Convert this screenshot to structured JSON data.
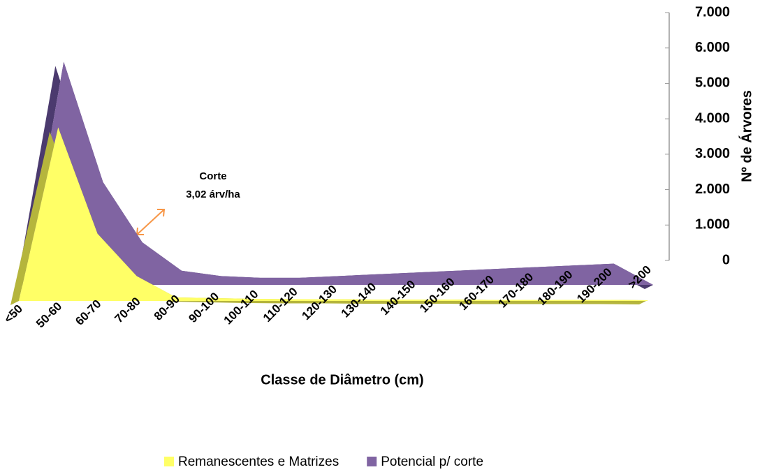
{
  "chart_data": {
    "type": "area",
    "x_label": "Classe de Diâmetro (cm)",
    "y_label": "Nº de Árvores",
    "categories": [
      "<50",
      "50-60",
      "60-70",
      "70-80",
      "80-90",
      "90-100",
      "100-110",
      "110-120",
      "120-130",
      "130-140",
      "140-150",
      "150-160",
      "160-170",
      "170-180",
      "180-190",
      "190-200",
      ">200"
    ],
    "series": [
      {
        "name": "Remanescentes e Matrizes",
        "color": "#ffff66",
        "values": [
          0,
          4900,
          1900,
          700,
          100,
          80,
          60,
          50,
          50,
          40,
          40,
          40,
          30,
          30,
          30,
          30,
          20
        ]
      },
      {
        "name": "Potencial p/ corte",
        "color": "#8064a2",
        "values": [
          0,
          6300,
          2900,
          1200,
          400,
          250,
          200,
          200,
          250,
          300,
          350,
          400,
          450,
          500,
          550,
          600,
          0
        ]
      }
    ],
    "ylim": [
      0,
      7000
    ],
    "yticks": [
      0,
      {
        "value": 1000,
        "label": "1.000"
      },
      {
        "value": 2000,
        "label": "2.000"
      },
      {
        "value": 3000,
        "label": "3.000"
      },
      {
        "value": 4000,
        "label": "4.000"
      },
      {
        "value": 5000,
        "label": "5.000"
      },
      {
        "value": 6000,
        "label": "6.000"
      },
      {
        "value": 7000,
        "label": "7.000"
      }
    ],
    "annotations": [
      "Corte",
      "3,02 árv/ha"
    ],
    "legend": "bottom"
  }
}
